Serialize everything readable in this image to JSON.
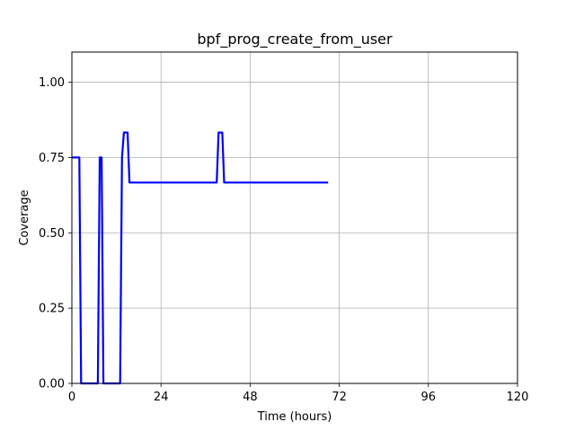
{
  "chart_data": {
    "type": "line",
    "title": "bpf_prog_create_from_user",
    "xlabel": "Time (hours)",
    "ylabel": "Coverage",
    "xlim": [
      0,
      120
    ],
    "ylim": [
      0,
      1.1
    ],
    "xticks": [
      0,
      24,
      48,
      72,
      96,
      120
    ],
    "xtick_labels": [
      "0",
      "24",
      "48",
      "72",
      "96",
      "120"
    ],
    "yticks": [
      0,
      0.25,
      0.5,
      0.75,
      1.0
    ],
    "ytick_labels": [
      "0.00",
      "0.25",
      "0.50",
      "0.75",
      "1.00"
    ],
    "grid": true,
    "series": [
      {
        "color": "#0000ff",
        "x": [
          0,
          2,
          2.5,
          7,
          7.5,
          8,
          8.5,
          9,
          13,
          13.5,
          14,
          15,
          15.5,
          16,
          39,
          39.5,
          40,
          40.5,
          41,
          69
        ],
        "y": [
          0.75,
          0.75,
          0,
          0,
          0.75,
          0.75,
          0,
          0,
          0,
          0.75,
          0.833,
          0.833,
          0.667,
          0.667,
          0.667,
          0.833,
          0.833,
          0.833,
          0.667,
          0.667
        ]
      }
    ]
  }
}
